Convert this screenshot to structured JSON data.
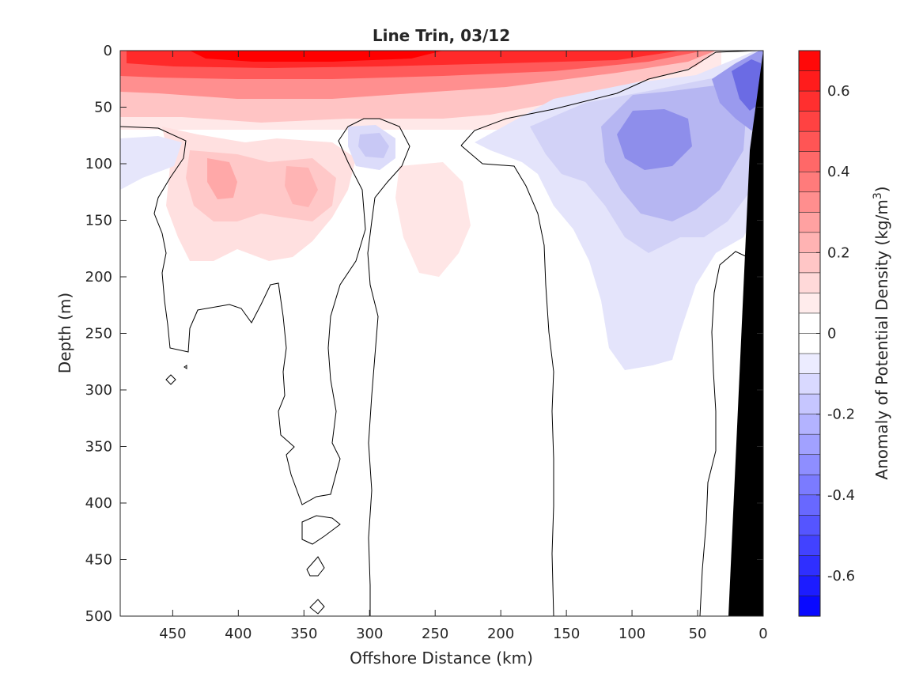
{
  "chart_data": {
    "type": "heatmap",
    "title": "Line Trin, 03/12",
    "xlabel": "Offshore Distance (km)",
    "ylabel": "Depth (m)",
    "xlim": [
      490,
      0
    ],
    "ylim": [
      0,
      500
    ],
    "x_reversed": true,
    "y_reversed": true,
    "x_ticks": [
      450,
      400,
      350,
      300,
      250,
      200,
      150,
      100,
      50,
      0
    ],
    "y_ticks": [
      0,
      50,
      100,
      150,
      200,
      250,
      300,
      350,
      400,
      450,
      500
    ],
    "colorbar": {
      "label_main": "Anomaly of Potential Density (kg/m",
      "label_sup": "3",
      "label_close": ")",
      "range": [
        -0.7,
        0.7
      ],
      "step": 0.05,
      "ticks": [
        0.6,
        0.4,
        0.2,
        0,
        -0.2,
        -0.4,
        -0.6
      ],
      "tick_labels": [
        "0.6",
        "0.4",
        "0.2",
        "0",
        "-0.2",
        "-0.4",
        "-0.6"
      ],
      "positive_color": "#ff0000",
      "negative_color": "#0000ff",
      "neutral_color": "#ffffff"
    },
    "anomaly_features": [
      {
        "name": "surface-dense-layer",
        "x": [
          0,
          490
        ],
        "depth": [
          0,
          50
        ],
        "value": 0.6
      },
      {
        "name": "subsurface-dense-core-west",
        "x": 410,
        "depth": 120,
        "value": 0.2
      },
      {
        "name": "subsurface-dense-core-mid",
        "x": 360,
        "depth": 120,
        "value": 0.2
      },
      {
        "name": "subsurface-dense-core-east",
        "x": 260,
        "depth": 140,
        "value": 0.05
      },
      {
        "name": "light-core-nearshore",
        "x": 90,
        "depth": 70,
        "value": -0.3
      },
      {
        "name": "light-surface-nearshore",
        "x": 10,
        "depth": 30,
        "value": -0.35
      },
      {
        "name": "light-small-core",
        "x": 290,
        "depth": 85,
        "value": -0.15
      }
    ],
    "zero_contour": true,
    "bathymetry": {
      "shown": true,
      "color": "#000000",
      "from_x": 25,
      "to_x": 0
    }
  }
}
